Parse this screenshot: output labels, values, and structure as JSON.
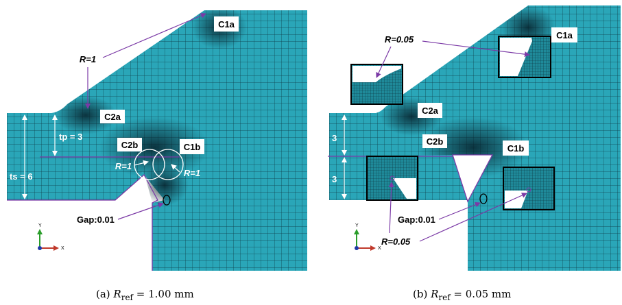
{
  "colors": {
    "mesh_fill": "#2aa6b8",
    "mesh_line": "#0d3c48",
    "annotation": "#7b3aa6",
    "label_box": "#ffffff",
    "arrow_white": "#ffffff"
  },
  "panel_a": {
    "labels": {
      "c1a": "C1a",
      "c2a": "C2a",
      "c2b": "C2b",
      "c1b": "C1b",
      "r_top": "R=1",
      "r_left": "R=1",
      "r_right": "R=1",
      "tp": "tp = 3",
      "ts": "ts = 6",
      "gap": "Gap:0.01"
    },
    "caption": {
      "prefix": "(a) ",
      "symbol": "R",
      "subscript": "ref",
      "value": " = 1.00 mm"
    }
  },
  "panel_b": {
    "labels": {
      "c1a": "C1a",
      "c2a": "C2a",
      "c2b": "C2b",
      "c1b": "C1b",
      "r_top": "R=0.05",
      "r_bottom": "R=0.05",
      "dim_top": "3",
      "dim_bottom": "3",
      "gap": "Gap:0.01"
    },
    "caption": {
      "prefix": "(b) ",
      "symbol": "R",
      "subscript": "ref",
      "value": " = 0.05 mm"
    }
  },
  "axis_triad": {
    "y": "Y",
    "x": "X"
  }
}
